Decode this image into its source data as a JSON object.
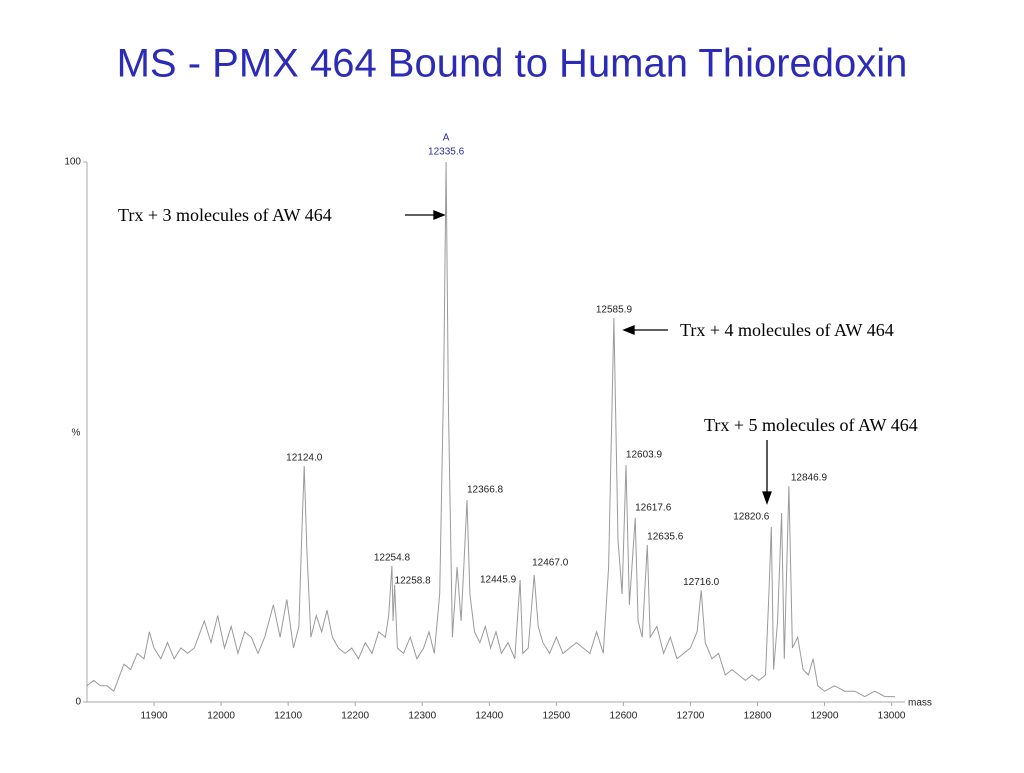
{
  "chart_data": {
    "type": "line",
    "title": "MS - PMX 464 Bound to Human Thioredoxin",
    "x_label": "mass",
    "y_label": "%",
    "color": "#9a9a9a",
    "xlim": [
      11800,
      13020
    ],
    "xticks": [
      11900,
      12000,
      12100,
      12200,
      12300,
      12400,
      12500,
      12600,
      12700,
      12800,
      12900,
      13000
    ],
    "ylim": [
      0,
      100
    ],
    "yticks": [
      0,
      100
    ],
    "x": [
      11800,
      11810,
      11820,
      11830,
      11840,
      11855,
      11865,
      11875,
      11885,
      11893,
      11900,
      11910,
      11920,
      11930,
      11940,
      11950,
      11960,
      11975,
      11985,
      11995,
      12005,
      12015,
      12025,
      12035,
      12045,
      12055,
      12065,
      12078,
      12088,
      12098,
      12108,
      12116,
      12120,
      12124,
      12128,
      12134,
      12142,
      12150,
      12158,
      12166,
      12175,
      12185,
      12195,
      12205,
      12215,
      12225,
      12235,
      12245,
      12250,
      12254.8,
      12256.5,
      12258.8,
      12263,
      12272,
      12282,
      12292,
      12302,
      12310,
      12318,
      12326,
      12332,
      12335.6,
      12339,
      12345,
      12352,
      12358,
      12362,
      12366.8,
      12371,
      12378,
      12386,
      12394,
      12402,
      12410,
      12418,
      12428,
      12438,
      12445.9,
      12450,
      12458,
      12467,
      12473,
      12480,
      12490,
      12500,
      12510,
      12520,
      12530,
      12540,
      12550,
      12560,
      12570,
      12578,
      12585.9,
      12592,
      12598,
      12603.9,
      12609,
      12617.6,
      12622,
      12628,
      12635.6,
      12640,
      12650,
      12660,
      12670,
      12680,
      12690,
      12700,
      12710,
      12716,
      12722,
      12732,
      12742,
      12752,
      12762,
      12772,
      12782,
      12792,
      12802,
      12812,
      12817,
      12820.6,
      12824,
      12830,
      12836,
      12840,
      12846.9,
      12852,
      12860,
      12868,
      12876,
      12883,
      12890,
      12900,
      12915,
      12930,
      12945,
      12960,
      12975,
      12990,
      13005
    ],
    "values": [
      3,
      4,
      3,
      3,
      2,
      7,
      6,
      9,
      8,
      13,
      10,
      8,
      11,
      8,
      10,
      9,
      10,
      15,
      11,
      16,
      10,
      14,
      9,
      13,
      12,
      9,
      12,
      18,
      12,
      19,
      10,
      14,
      30,
      43.7,
      28,
      12,
      16,
      13,
      17,
      12,
      10,
      9,
      10,
      8,
      11,
      9,
      13,
      12,
      16,
      25.2,
      15,
      21.7,
      10,
      9,
      12,
      8,
      10,
      13,
      9,
      20,
      60,
      100,
      55,
      12,
      25,
      15,
      25,
      37.4,
      20,
      13,
      11,
      14,
      10,
      13,
      9,
      11,
      8,
      22.6,
      9,
      10,
      23.5,
      14,
      11,
      9,
      12,
      9,
      10,
      11,
      10,
      9,
      13,
      9,
      25,
      71.1,
      30,
      20,
      43.9,
      18,
      34.1,
      15,
      12,
      29.1,
      12,
      14,
      9,
      12,
      8,
      9,
      10,
      13,
      20.7,
      11,
      8,
      9,
      5,
      6,
      5,
      4,
      5,
      4,
      5,
      20,
      32.4,
      6,
      15,
      35,
      8,
      40,
      10,
      12,
      6,
      5,
      8,
      3,
      2,
      3,
      2,
      2,
      1,
      2,
      1,
      1
    ],
    "peak_marker": "A",
    "peaks": {
      "x": [
        12124,
        12254.8,
        12258.8,
        12335.6,
        12366.8,
        12445.9,
        12467,
        12585.9,
        12603.9,
        12617.6,
        12635.6,
        12716,
        12820.6,
        12846.9
      ],
      "values": [
        43.7,
        25.2,
        21.7,
        100,
        37.4,
        22.6,
        23.5,
        71.1,
        43.9,
        34.1,
        29.1,
        20.7,
        32.4,
        40
      ],
      "labels": [
        "12124.0",
        "12254.8",
        "12258.8",
        "12335.6",
        "12366.8",
        "12445.9",
        "12467.0",
        "12585.9",
        "12603.9",
        "12617.6",
        "12635.6",
        "12716.0",
        "12820.6",
        "12846.9"
      ]
    },
    "annotations": [
      "Trx + 3 molecules of AW 464",
      "Trx + 4 molecules of AW 464",
      "Trx + 5 molecules of AW 464"
    ]
  }
}
